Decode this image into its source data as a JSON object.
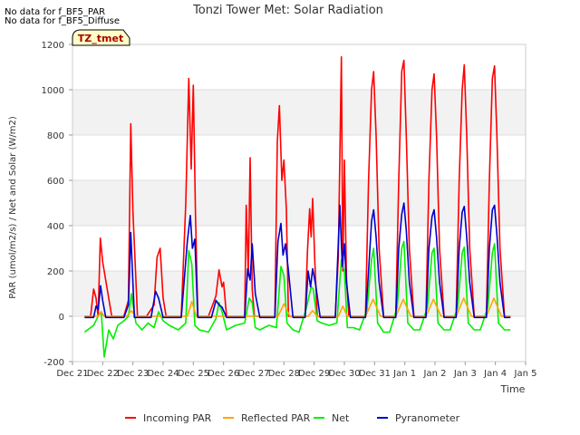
{
  "notes": [
    "No data for f_BF5_PAR",
    "No data for f_BF5_Diffuse"
  ],
  "site_badge": "TZ_tmet",
  "chart_data": {
    "type": "line",
    "title": "Tonzi Tower Met: Solar Radiation",
    "xlabel": "Time",
    "ylabel": "PAR (umol/m2/s) / Net and Solar (W/m2)",
    "ylim": [
      -200,
      1200
    ],
    "yticks": [
      -200,
      0,
      200,
      400,
      600,
      800,
      1000,
      1200
    ],
    "xlim": [
      0,
      15
    ],
    "xticks": [
      "Dec 21",
      "Dec 22",
      "Dec 23",
      "Dec 24",
      "Dec 25",
      "Dec 26",
      "Dec 27",
      "Dec 28",
      "Dec 29",
      "Dec 30",
      "Dec 31",
      "Jan 1",
      "Jan 2",
      "Jan 3",
      "Jan 4",
      "Jan 5"
    ],
    "legend_position": "bottom",
    "series": [
      {
        "name": "Incoming PAR",
        "color": "#ff0000",
        "x": [
          0.4,
          0.6,
          0.7,
          0.78,
          0.85,
          0.92,
          1.0,
          1.3,
          1.7,
          1.85,
          1.93,
          2.0,
          2.15,
          2.45,
          2.7,
          2.8,
          2.9,
          3.0,
          3.1,
          3.6,
          3.75,
          3.85,
          3.93,
          4.0,
          4.07,
          4.15,
          4.5,
          4.75,
          4.85,
          4.95,
          5.0,
          5.1,
          5.25,
          5.7,
          5.75,
          5.82,
          5.88,
          5.95,
          6.02,
          6.2,
          6.7,
          6.78,
          6.85,
          6.93,
          7.0,
          7.08,
          7.15,
          7.3,
          7.7,
          7.78,
          7.85,
          7.9,
          7.95,
          8.02,
          8.1,
          8.25,
          8.7,
          8.8,
          8.9,
          8.95,
          9.0,
          9.07,
          9.15,
          9.3,
          9.7,
          9.8,
          9.9,
          9.97,
          10.05,
          10.15,
          10.3,
          10.7,
          10.8,
          10.9,
          10.97,
          11.05,
          11.15,
          11.3,
          11.7,
          11.8,
          11.9,
          11.97,
          12.05,
          12.15,
          12.3,
          12.7,
          12.8,
          12.9,
          12.97,
          13.05,
          13.15,
          13.3,
          13.7,
          13.8,
          13.9,
          13.97,
          14.05,
          14.15,
          14.3,
          14.5
        ],
        "y": [
          0,
          0,
          120,
          80,
          0,
          345,
          240,
          0,
          0,
          70,
          850,
          460,
          0,
          0,
          50,
          260,
          300,
          80,
          0,
          0,
          500,
          1050,
          650,
          1020,
          450,
          0,
          0,
          90,
          205,
          130,
          150,
          0,
          0,
          0,
          490,
          180,
          700,
          120,
          0,
          0,
          0,
          770,
          930,
          600,
          690,
          470,
          0,
          0,
          0,
          290,
          475,
          350,
          520,
          250,
          0,
          0,
          0,
          260,
          1145,
          200,
          690,
          170,
          0,
          0,
          0,
          600,
          1000,
          1080,
          800,
          300,
          0,
          0,
          600,
          1080,
          1130,
          800,
          300,
          0,
          0,
          600,
          1000,
          1070,
          800,
          300,
          0,
          0,
          600,
          1000,
          1110,
          800,
          300,
          0,
          0,
          600,
          1050,
          1105,
          800,
          300,
          0,
          0
        ]
      },
      {
        "name": "Reflected PAR",
        "color": "#ffa500",
        "x": [
          0.4,
          0.85,
          0.95,
          1.05,
          1.8,
          1.95,
          2.1,
          3.8,
          3.95,
          4.1,
          6.8,
          7.0,
          7.2,
          7.8,
          7.95,
          8.1,
          8.8,
          8.95,
          9.1,
          9.7,
          9.95,
          10.2,
          10.7,
          10.95,
          11.2,
          11.7,
          11.95,
          12.2,
          12.7,
          12.95,
          13.2,
          13.7,
          13.95,
          14.2,
          14.5
        ],
        "y": [
          0,
          0,
          20,
          0,
          0,
          25,
          0,
          0,
          65,
          0,
          0,
          55,
          0,
          0,
          25,
          0,
          0,
          45,
          0,
          0,
          75,
          0,
          0,
          75,
          0,
          0,
          75,
          0,
          0,
          80,
          0,
          0,
          80,
          0,
          0
        ]
      },
      {
        "name": "Net",
        "color": "#00ee00",
        "x": [
          0.4,
          0.7,
          0.85,
          0.95,
          1.05,
          1.2,
          1.35,
          1.5,
          1.7,
          1.85,
          1.95,
          2.1,
          2.3,
          2.5,
          2.7,
          2.85,
          3.0,
          3.2,
          3.5,
          3.75,
          3.85,
          3.95,
          4.05,
          4.2,
          4.5,
          4.75,
          4.85,
          4.95,
          5.1,
          5.4,
          5.7,
          5.85,
          5.95,
          6.05,
          6.2,
          6.5,
          6.75,
          6.9,
          7.0,
          7.1,
          7.3,
          7.5,
          7.75,
          7.9,
          7.97,
          8.1,
          8.25,
          8.5,
          8.75,
          8.9,
          9.0,
          9.1,
          9.3,
          9.5,
          9.75,
          9.9,
          9.97,
          10.1,
          10.3,
          10.5,
          10.75,
          10.9,
          10.97,
          11.1,
          11.3,
          11.5,
          11.75,
          11.9,
          11.97,
          12.1,
          12.3,
          12.5,
          12.75,
          12.9,
          12.97,
          13.1,
          13.3,
          13.5,
          13.75,
          13.9,
          13.97,
          14.1,
          14.3,
          14.5
        ],
        "y": [
          -70,
          -40,
          0,
          20,
          -180,
          -60,
          -100,
          -40,
          -20,
          0,
          100,
          -30,
          -60,
          -30,
          -50,
          20,
          -20,
          -40,
          -60,
          -30,
          290,
          230,
          -40,
          -60,
          -70,
          -10,
          60,
          20,
          -60,
          -40,
          -30,
          80,
          60,
          -50,
          -60,
          -40,
          -50,
          220,
          180,
          -30,
          -60,
          -70,
          40,
          130,
          120,
          -20,
          -30,
          -40,
          -30,
          250,
          200,
          -50,
          -50,
          -60,
          30,
          250,
          300,
          -30,
          -70,
          -70,
          40,
          300,
          330,
          -30,
          -60,
          -60,
          40,
          280,
          300,
          -30,
          -60,
          -60,
          40,
          280,
          305,
          -30,
          -60,
          -60,
          40,
          280,
          320,
          -30,
          -60,
          -60
        ]
      },
      {
        "name": "Pyranometer",
        "color": "#0000cc",
        "x": [
          0.4,
          0.7,
          0.78,
          0.85,
          0.93,
          1.0,
          1.1,
          1.7,
          1.85,
          1.93,
          2.05,
          2.6,
          2.75,
          2.85,
          3.0,
          3.6,
          3.8,
          3.9,
          3.97,
          4.05,
          4.15,
          4.6,
          4.75,
          4.85,
          4.95,
          5.1,
          5.7,
          5.8,
          5.88,
          5.95,
          6.05,
          6.2,
          6.7,
          6.8,
          6.9,
          6.97,
          7.05,
          7.15,
          7.3,
          7.7,
          7.8,
          7.88,
          7.95,
          8.05,
          8.2,
          8.7,
          8.85,
          8.93,
          9.0,
          9.07,
          9.2,
          9.7,
          9.8,
          9.9,
          9.97,
          10.05,
          10.15,
          10.3,
          10.7,
          10.8,
          10.9,
          10.97,
          11.05,
          11.15,
          11.3,
          11.7,
          11.8,
          11.9,
          11.97,
          12.05,
          12.15,
          12.3,
          12.7,
          12.8,
          12.9,
          12.97,
          13.05,
          13.15,
          13.3,
          13.7,
          13.8,
          13.9,
          13.97,
          14.05,
          14.15,
          14.3,
          14.5
        ],
        "y": [
          -5,
          -5,
          45,
          30,
          135,
          70,
          -5,
          -5,
          50,
          370,
          -5,
          -5,
          110,
          80,
          -5,
          -5,
          330,
          445,
          300,
          340,
          -5,
          -5,
          70,
          50,
          40,
          -5,
          -5,
          210,
          160,
          320,
          100,
          -5,
          -5,
          330,
          410,
          270,
          320,
          200,
          -5,
          -5,
          200,
          130,
          210,
          140,
          -5,
          -5,
          490,
          220,
          320,
          150,
          -5,
          -5,
          200,
          420,
          470,
          350,
          150,
          -5,
          -5,
          300,
          450,
          500,
          380,
          150,
          -5,
          -5,
          300,
          440,
          470,
          350,
          150,
          -5,
          -5,
          300,
          460,
          485,
          350,
          150,
          -5,
          -5,
          300,
          470,
          490,
          360,
          150,
          -5,
          -5
        ]
      }
    ]
  }
}
